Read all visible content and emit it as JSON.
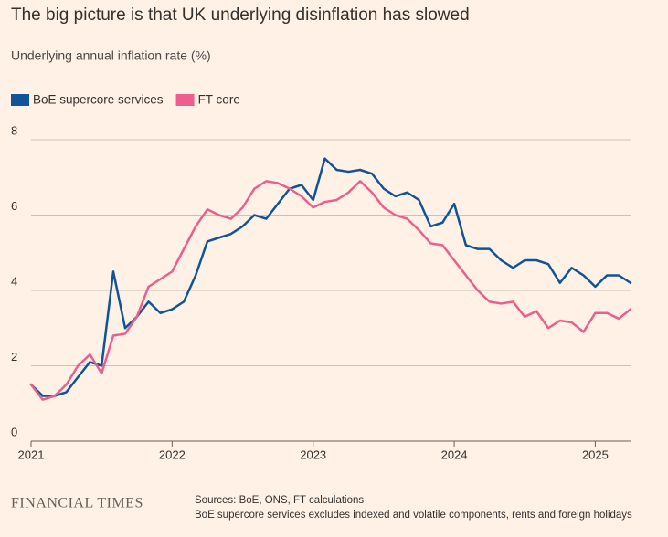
{
  "chart_data": {
    "type": "line",
    "title": "The big picture is that UK underlying disinflation has slowed",
    "subtitle": "Underlying annual inflation rate (%)",
    "x": [
      2021.0,
      2021.083,
      2021.167,
      2021.25,
      2021.333,
      2021.417,
      2021.5,
      2021.583,
      2021.667,
      2021.75,
      2021.833,
      2021.917,
      2022.0,
      2022.083,
      2022.167,
      2022.25,
      2022.333,
      2022.417,
      2022.5,
      2022.583,
      2022.667,
      2022.75,
      2022.833,
      2022.917,
      2023.0,
      2023.083,
      2023.167,
      2023.25,
      2023.333,
      2023.417,
      2023.5,
      2023.583,
      2023.667,
      2023.75,
      2023.833,
      2023.917,
      2024.0,
      2024.083,
      2024.167,
      2024.25,
      2024.333,
      2024.417,
      2024.5,
      2024.583,
      2024.667,
      2024.75,
      2024.833,
      2024.917,
      2025.0,
      2025.083,
      2025.167,
      2025.25
    ],
    "series": [
      {
        "name": "BoE supercore services",
        "color": "#0f5499",
        "values": [
          1.5,
          1.2,
          1.2,
          1.3,
          1.7,
          2.1,
          2.0,
          4.5,
          3.0,
          3.3,
          3.7,
          3.4,
          3.5,
          3.7,
          4.4,
          5.3,
          5.4,
          5.5,
          5.7,
          6.0,
          5.9,
          6.3,
          6.7,
          6.8,
          6.4,
          7.5,
          7.2,
          7.15,
          7.2,
          7.1,
          6.7,
          6.5,
          6.6,
          6.4,
          5.7,
          5.8,
          6.3,
          5.2,
          5.1,
          5.1,
          4.8,
          4.6,
          4.8,
          4.8,
          4.7,
          4.2,
          4.6,
          4.4,
          4.1,
          4.4,
          4.4,
          4.2
        ]
      },
      {
        "name": "FT core",
        "color": "#eb5e8d",
        "values": [
          1.5,
          1.1,
          1.2,
          1.5,
          2.0,
          2.3,
          1.8,
          2.8,
          2.85,
          3.3,
          4.1,
          4.3,
          4.5,
          5.1,
          5.7,
          6.15,
          6.0,
          5.9,
          6.2,
          6.7,
          6.9,
          6.85,
          6.7,
          6.5,
          6.2,
          6.35,
          6.4,
          6.6,
          6.9,
          6.6,
          6.2,
          6.0,
          5.9,
          5.6,
          5.25,
          5.2,
          4.8,
          4.4,
          4.0,
          3.7,
          3.65,
          3.7,
          3.3,
          3.45,
          3.0,
          3.2,
          3.15,
          2.9,
          3.4,
          3.4,
          3.25,
          3.5
        ]
      }
    ],
    "xlim": [
      2021.0,
      2025.25
    ],
    "xticks": [
      2021,
      2022,
      2023,
      2024,
      2025
    ],
    "ylim": [
      0,
      8
    ],
    "yticks": [
      0,
      2,
      4,
      6,
      8
    ],
    "grid": true,
    "legend": "top",
    "brand": "FINANCIAL TIMES",
    "notes": [
      "Sources: BoE, ONS, FT calculations",
      "BoE supercore services excludes indexed and volatile components, rents and foreign holidays"
    ]
  }
}
